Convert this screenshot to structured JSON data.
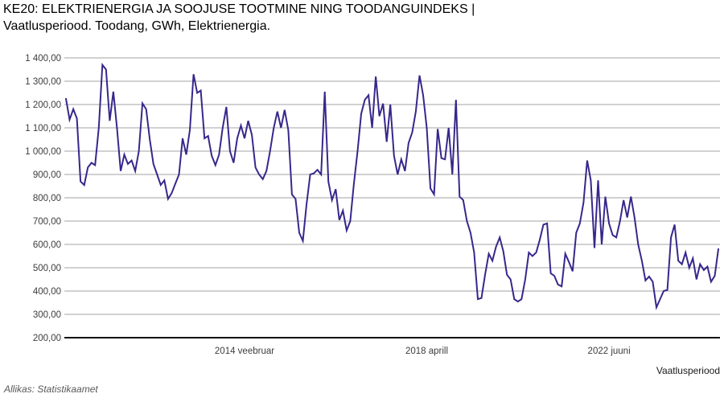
{
  "title": {
    "line1": "KE20: ELEKTRIENERGIA JA SOOJUSE TOOTMINE NING TOODANGUINDEKS |",
    "line2": "Vaatlusperiood. Toodang, GWh, Elektrienergia."
  },
  "source_note": "Allikas: Statistikaamet",
  "axis": {
    "x_title": "Vaatlusperiood"
  },
  "colors": {
    "line": "#38278b",
    "grid": "#a3a3a3",
    "axis": "#111111",
    "tick_text": "#3d3d3d",
    "background": "#ffffff"
  },
  "chart_data": {
    "type": "line",
    "title": "KE20: ELEKTRIENERGIA JA SOOJUSE TOOTMINE NING TOODANGUINDEKS | Vaatlusperiood. Toodang, GWh, Elektrienergia.",
    "xlabel": "Vaatlusperiood",
    "ylabel": "",
    "legend": "none",
    "grid": "horizontal",
    "ylim": [
      200,
      1400
    ],
    "y_ticks": [
      {
        "value": 1400,
        "label": "1 400,00"
      },
      {
        "value": 1300,
        "label": "1 300,00"
      },
      {
        "value": 1200,
        "label": "1 200,00"
      },
      {
        "value": 1100,
        "label": "1 100,00"
      },
      {
        "value": 1000,
        "label": "1 000,00"
      },
      {
        "value": 900,
        "label": "900,00"
      },
      {
        "value": 800,
        "label": "800,00"
      },
      {
        "value": 700,
        "label": "700,00"
      },
      {
        "value": 600,
        "label": "600,00"
      },
      {
        "value": 500,
        "label": "500,00"
      },
      {
        "value": 400,
        "label": "400,00"
      },
      {
        "value": 300,
        "label": "300,00"
      },
      {
        "value": 200,
        "label": "200,00"
      }
    ],
    "x_ticks": [
      {
        "label": "2014 veebruar",
        "month_index": 49
      },
      {
        "label": "2018 aprill",
        "month_index": 99
      },
      {
        "label": "2022 juuni",
        "month_index": 149
      }
    ],
    "series": [
      {
        "name": "Toodang, GWh, Elektrienergia",
        "start_month_estimated": "2010-01",
        "end_month_estimated": "2024-12",
        "values": [
          1225,
          1135,
          1180,
          1140,
          870,
          855,
          930,
          950,
          940,
          1100,
          1370,
          1350,
          1130,
          1255,
          1100,
          915,
          985,
          945,
          960,
          915,
          1000,
          1205,
          1180,
          1050,
          945,
          900,
          855,
          875,
          795,
          820,
          860,
          900,
          1055,
          985,
          1090,
          1330,
          1250,
          1260,
          1055,
          1065,
          980,
          940,
          985,
          1100,
          1190,
          1000,
          950,
          1055,
          1110,
          1055,
          1130,
          1070,
          930,
          900,
          880,
          915,
          1000,
          1100,
          1170,
          1100,
          1177,
          1090,
          814,
          795,
          650,
          615,
          770,
          900,
          905,
          920,
          900,
          1255,
          870,
          790,
          837,
          705,
          745,
          660,
          700,
          860,
          1000,
          1160,
          1220,
          1240,
          1100,
          1320,
          1150,
          1204,
          1040,
          1200,
          980,
          900,
          965,
          915,
          1035,
          1080,
          1170,
          1325,
          1240,
          1100,
          840,
          815,
          1095,
          970,
          965,
          1100,
          900,
          1220,
          805,
          790,
          700,
          650,
          565,
          365,
          370,
          470,
          560,
          530,
          590,
          630,
          570,
          470,
          450,
          365,
          355,
          365,
          450,
          565,
          550,
          565,
          620,
          685,
          690,
          476,
          465,
          428,
          420,
          560,
          525,
          485,
          650,
          690,
          780,
          960,
          875,
          585,
          875,
          600,
          805,
          690,
          640,
          630,
          700,
          790,
          715,
          805,
          715,
          600,
          530,
          445,
          462,
          440,
          330,
          365,
          400,
          405,
          630,
          685,
          530,
          515,
          565,
          500,
          540,
          450,
          515,
          490,
          505,
          440,
          465,
          580
        ]
      }
    ]
  }
}
